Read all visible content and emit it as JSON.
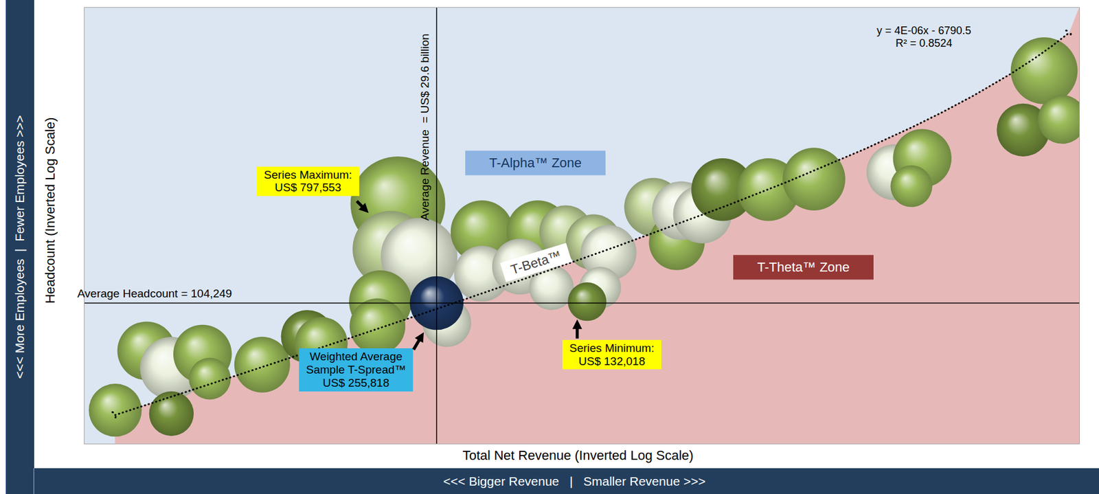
{
  "chart_data": {
    "type": "scatter",
    "x_label": "Total Net Revenue (Inverted Log Scale)",
    "y_label": "Headcount (Inverted Log Scale)",
    "x_direction_label": "<<< Bigger Revenue   |   Smaller Revenue >>>",
    "y_direction_label": "<<< More Employees  |  Fewer Employees >>>",
    "log": true,
    "grid": false,
    "tick_labels": false,
    "marker": "circle",
    "xlim": [
      110000000000,
      2700000000
    ],
    "ylim": [
      540000,
      3300
    ],
    "x": [
      98000000000,
      87200000000,
      79500000000,
      70800000000,
      79500000000,
      68900000000,
      56700000000,
      47900000000,
      45500000000,
      34200000000,
      35100000000,
      31600000000,
      36500000000,
      36900000000,
      28500000000,
      25000000000,
      25000000000,
      20300000000,
      21700000000,
      18300000000,
      19300000000,
      16500000000,
      15600000000,
      16100000000,
      16900000000,
      13200000000,
      12100000000,
      11900000000,
      11000000000,
      10200000000,
      8600000000,
      7260000000,
      5380000000,
      4850000000,
      5050000000,
      3080000000,
      3330000000,
      2880000000,
      29600000000
    ],
    "values": [
      364000,
      182000,
      223000,
      189000,
      379000,
      252000,
      214000,
      154000,
      167000,
      32700,
      55500,
      60300,
      102500,
      136500,
      131000,
      45300,
      73900,
      45300,
      68100,
      45300,
      87100,
      51200,
      57900,
      87100,
      102500,
      34000,
      51200,
      35400,
      36900,
      27700,
      27700,
      24500,
      22600,
      19200,
      26600,
      6910,
      13800,
      12200,
      104249
    ],
    "sizes": [
      249000,
      304000,
      349000,
      304000,
      177000,
      155000,
      276000,
      249000,
      249000,
      797553,
      522000,
      522000,
      349000,
      276000,
      211000,
      349000,
      276000,
      349000,
      276000,
      249000,
      177000,
      276000,
      276000,
      155000,
      132018,
      304000,
      276000,
      304000,
      304000,
      349000,
      349000,
      349000,
      276000,
      304000,
      155000,
      397000,
      249000,
      211000,
      255818
    ],
    "colors": [
      "#9bbb59",
      "#9bbb59",
      "#ebf1de",
      "#9bbb59",
      "#76923c",
      "#9bbb59",
      "#9bbb59",
      "#76923c",
      "#9bbb59",
      "#9bbb59",
      "#c3d69b",
      "#ebf1de",
      "#9bbb59",
      "#9bbb59",
      "#ebf1de",
      "#9bbb59",
      "#ebf1de",
      "#9bbb59",
      "#ebf1de",
      "#c3d69b",
      "#ebf1de",
      "#c3d69b",
      "#ebf1de",
      "#ebf1de",
      "#76923c",
      "#c3d69b",
      "#9bbb59",
      "#ebf1de",
      "#ebf1de",
      "#76923c",
      "#9bbb59",
      "#9bbb59",
      "#ebf1de",
      "#9bbb59",
      "#9bbb59",
      "#9bbb59",
      "#76923c",
      "#9bbb59",
      "#1f3864"
    ],
    "trendline": {
      "x": [
        98000000000,
        60000000000,
        40000000000,
        29600000000,
        20000000000,
        15000000000,
        10000000000,
        8000000000,
        6000000000,
        5000000000,
        4500000000,
        4000000000,
        3500000000,
        3200000000,
        3000000000,
        2800000000
      ],
      "values": [
        385210,
        233210,
        153210,
        111610,
        73210,
        53210,
        33210,
        25210,
        17210,
        13210,
        11210,
        9210,
        7210,
        6010,
        5210,
        4410
      ],
      "color": "#000000",
      "line_style": "dotted",
      "label": "T-Beta™",
      "equation": "y = 4E-06x - 6790.5",
      "r_squared": "R² = 0.8524"
    },
    "zones": [
      {
        "label": "T-Alpha™ Zone",
        "color": "#dce6f2"
      },
      {
        "label": "T-Theta™ Zone",
        "color": "#e6b9b8"
      }
    ],
    "reference_lines": [
      {
        "axis": "x",
        "value": 29600000000,
        "label": "Average Revenue  = US$ 29.6 billion"
      },
      {
        "axis": "y",
        "value": 104249,
        "label": "Average Headcount = 104,249"
      }
    ],
    "annotations": [
      {
        "text": [
          "Series Maximum:",
          "US$ 797,553"
        ],
        "size": 797553,
        "color": "#ffff00"
      },
      {
        "text": [
          "Series Minimum:",
          "US$ 132,018"
        ],
        "size": 132018,
        "color": "#ffff00"
      },
      {
        "text": [
          "Weighted Average",
          "Sample T-Spread™",
          "US$ 255,818"
        ],
        "size": 255818,
        "color": "#33b5e5"
      }
    ]
  }
}
